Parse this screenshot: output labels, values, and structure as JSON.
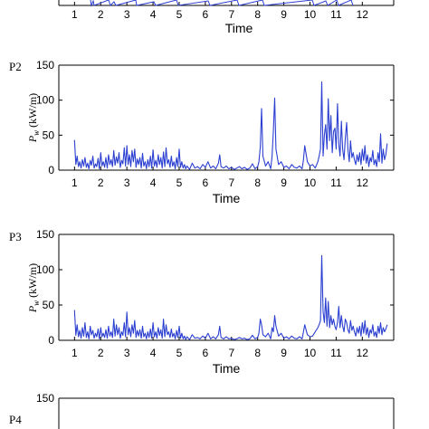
{
  "panel_labels": [
    "P2",
    "P3",
    "P4"
  ],
  "top_strip": {
    "ticks": [
      "1",
      "2",
      "3",
      "4",
      "5",
      "6",
      "7",
      "8",
      "9",
      "10",
      "11",
      "12"
    ],
    "xlabel": "Time"
  },
  "series_color": "#2b3fd1",
  "chart_data": [
    {
      "type": "line",
      "label": "P2",
      "xlabel": "Time",
      "ylabel": "P_w (kW/m)",
      "ylim": [
        0,
        150
      ],
      "yticks": [
        0,
        50,
        100,
        150
      ],
      "xticks": [
        1,
        2,
        3,
        4,
        5,
        6,
        7,
        8,
        9,
        10,
        11,
        12
      ],
      "xlim": [
        0.4,
        13.2
      ],
      "series": [
        {
          "x": [
            1.0,
            1.05,
            1.1,
            1.15,
            1.2,
            1.25,
            1.3,
            1.35,
            1.4,
            1.45,
            1.5,
            1.55,
            1.6,
            1.65,
            1.7,
            1.75,
            1.8,
            1.85,
            1.9,
            1.95,
            2.0,
            2.05,
            2.1,
            2.15,
            2.2,
            2.25,
            2.3,
            2.35,
            2.4,
            2.45,
            2.5,
            2.55,
            2.6,
            2.65,
            2.7,
            2.75,
            2.8,
            2.85,
            2.9,
            2.95,
            3.0,
            3.05,
            3.1,
            3.15,
            3.2,
            3.25,
            3.3,
            3.35,
            3.4,
            3.45,
            3.5,
            3.55,
            3.6,
            3.65,
            3.7,
            3.75,
            3.8,
            3.85,
            3.9,
            3.95,
            4.0,
            4.05,
            4.1,
            4.15,
            4.2,
            4.25,
            4.3,
            4.35,
            4.4,
            4.45,
            4.5,
            4.55,
            4.6,
            4.65,
            4.7,
            4.75,
            4.8,
            4.85,
            4.9,
            4.95,
            5.0,
            5.05,
            5.1,
            5.15,
            5.2,
            5.25,
            5.3,
            5.4,
            5.5,
            5.6,
            5.7,
            5.8,
            5.9,
            6.0,
            6.1,
            6.2,
            6.3,
            6.4,
            6.5,
            6.55,
            6.6,
            6.7,
            6.8,
            6.9,
            7.0,
            7.1,
            7.2,
            7.3,
            7.4,
            7.5,
            7.6,
            7.7,
            7.8,
            7.9,
            8.0,
            8.05,
            8.1,
            8.15,
            8.2,
            8.3,
            8.4,
            8.5,
            8.55,
            8.6,
            8.65,
            8.7,
            8.8,
            8.9,
            9.0,
            9.1,
            9.2,
            9.3,
            9.4,
            9.5,
            9.6,
            9.7,
            9.75,
            9.8,
            9.9,
            10.0,
            10.1,
            10.2,
            10.3,
            10.35,
            10.4,
            10.45,
            10.5,
            10.55,
            10.6,
            10.65,
            10.7,
            10.75,
            10.8,
            10.85,
            10.9,
            10.95,
            11.0,
            11.05,
            11.1,
            11.15,
            11.2,
            11.25,
            11.3,
            11.35,
            11.4,
            11.45,
            11.5,
            11.55,
            11.6,
            11.65,
            11.7,
            11.75,
            11.8,
            11.85,
            11.9,
            11.95,
            12.0,
            12.05,
            12.1,
            12.15,
            12.2,
            12.25,
            12.3,
            12.35,
            12.4,
            12.45,
            12.5,
            12.55,
            12.6,
            12.65,
            12.7,
            12.75,
            12.8,
            12.85,
            12.9,
            12.95
          ],
          "y": [
            43,
            8,
            20,
            5,
            12,
            3,
            15,
            6,
            18,
            4,
            10,
            2,
            14,
            7,
            20,
            3,
            9,
            5,
            17,
            2,
            25,
            6,
            12,
            4,
            18,
            3,
            22,
            8,
            15,
            5,
            28,
            7,
            19,
            10,
            25,
            4,
            14,
            9,
            32,
            6,
            35,
            8,
            22,
            5,
            28,
            12,
            30,
            4,
            16,
            8,
            18,
            3,
            24,
            6,
            12,
            2,
            15,
            5,
            20,
            3,
            29,
            6,
            14,
            4,
            22,
            8,
            18,
            3,
            26,
            5,
            32,
            9,
            15,
            4,
            20,
            6,
            12,
            2,
            18,
            5,
            30,
            4,
            12,
            3,
            8,
            2,
            6,
            1,
            10,
            3,
            5,
            2,
            8,
            4,
            12,
            3,
            6,
            2,
            10,
            22,
            5,
            3,
            6,
            2,
            4,
            1,
            3,
            5,
            2,
            4,
            1,
            3,
            9,
            2,
            5,
            12,
            33,
            88,
            20,
            6,
            12,
            2,
            20,
            55,
            103,
            30,
            8,
            12,
            4,
            6,
            2,
            8,
            4,
            3,
            6,
            2,
            15,
            35,
            12,
            6,
            8,
            3,
            12,
            20,
            30,
            126,
            20,
            50,
            65,
            30,
            102,
            42,
            78,
            25,
            55,
            60,
            30,
            95,
            38,
            20,
            70,
            30,
            15,
            45,
            68,
            30,
            12,
            42,
            18,
            25,
            15,
            8,
            22,
            12,
            25,
            8,
            30,
            14,
            35,
            10,
            22,
            5,
            18,
            12,
            28,
            8,
            15,
            5,
            25,
            12,
            52,
            10,
            30,
            15,
            22,
            38
          ]
        }
      ]
    },
    {
      "type": "line",
      "label": "P3",
      "xlabel": "Time",
      "ylabel": "P_w (kW/m)",
      "ylim": [
        0,
        150
      ],
      "yticks": [
        0,
        50,
        100,
        150
      ],
      "xticks": [
        1,
        2,
        3,
        4,
        5,
        6,
        7,
        8,
        9,
        10,
        11,
        12
      ],
      "xlim": [
        0.4,
        13.2
      ],
      "series": [
        {
          "x": [
            1.0,
            1.05,
            1.1,
            1.15,
            1.2,
            1.25,
            1.3,
            1.35,
            1.4,
            1.45,
            1.5,
            1.55,
            1.6,
            1.65,
            1.7,
            1.75,
            1.8,
            1.85,
            1.9,
            1.95,
            2.0,
            2.05,
            2.1,
            2.15,
            2.2,
            2.25,
            2.3,
            2.35,
            2.4,
            2.45,
            2.5,
            2.55,
            2.6,
            2.65,
            2.7,
            2.75,
            2.8,
            2.85,
            2.9,
            2.95,
            3.0,
            3.05,
            3.1,
            3.15,
            3.2,
            3.25,
            3.3,
            3.35,
            3.4,
            3.45,
            3.5,
            3.55,
            3.6,
            3.65,
            3.7,
            3.75,
            3.8,
            3.85,
            3.9,
            3.95,
            4.0,
            4.05,
            4.1,
            4.15,
            4.2,
            4.25,
            4.3,
            4.35,
            4.4,
            4.45,
            4.5,
            4.55,
            4.6,
            4.65,
            4.7,
            4.75,
            4.8,
            4.85,
            4.9,
            4.95,
            5.0,
            5.05,
            5.1,
            5.15,
            5.2,
            5.25,
            5.3,
            5.4,
            5.5,
            5.6,
            5.7,
            5.8,
            5.9,
            6.0,
            6.1,
            6.2,
            6.3,
            6.4,
            6.5,
            6.55,
            6.6,
            6.7,
            6.8,
            6.9,
            7.0,
            7.1,
            7.2,
            7.3,
            7.4,
            7.5,
            7.6,
            7.7,
            7.8,
            7.9,
            8.0,
            8.05,
            8.1,
            8.15,
            8.2,
            8.3,
            8.4,
            8.5,
            8.55,
            8.6,
            8.65,
            8.7,
            8.8,
            8.9,
            9.0,
            9.1,
            9.2,
            9.3,
            9.4,
            9.5,
            9.6,
            9.7,
            9.75,
            9.8,
            9.9,
            10.0,
            10.1,
            10.2,
            10.3,
            10.35,
            10.4,
            10.45,
            10.5,
            10.55,
            10.6,
            10.65,
            10.7,
            10.75,
            10.8,
            10.85,
            10.9,
            10.95,
            11.0,
            11.05,
            11.1,
            11.15,
            11.2,
            11.25,
            11.3,
            11.35,
            11.4,
            11.45,
            11.5,
            11.55,
            11.6,
            11.65,
            11.7,
            11.75,
            11.8,
            11.85,
            11.9,
            11.95,
            12.0,
            12.05,
            12.1,
            12.15,
            12.2,
            12.25,
            12.3,
            12.35,
            12.4,
            12.45,
            12.5,
            12.55,
            12.6,
            12.65,
            12.7,
            12.75,
            12.8,
            12.85,
            12.9,
            12.95
          ],
          "y": [
            43,
            7,
            22,
            5,
            14,
            3,
            18,
            6,
            25,
            4,
            12,
            2,
            20,
            8,
            14,
            3,
            10,
            5,
            16,
            2,
            18,
            5,
            10,
            4,
            15,
            3,
            20,
            6,
            12,
            4,
            30,
            6,
            22,
            8,
            18,
            3,
            12,
            7,
            25,
            5,
            40,
            8,
            18,
            5,
            22,
            10,
            28,
            4,
            14,
            6,
            15,
            3,
            20,
            5,
            10,
            2,
            12,
            4,
            16,
            3,
            25,
            5,
            12,
            3,
            18,
            7,
            15,
            3,
            30,
            5,
            22,
            8,
            12,
            4,
            16,
            5,
            10,
            2,
            14,
            4,
            20,
            3,
            10,
            2,
            6,
            1,
            5,
            1,
            8,
            3,
            4,
            2,
            6,
            3,
            10,
            2,
            5,
            2,
            8,
            20,
            4,
            2,
            5,
            2,
            3,
            1,
            2,
            4,
            2,
            3,
            1,
            2,
            7,
            2,
            4,
            10,
            30,
            22,
            8,
            5,
            10,
            2,
            18,
            12,
            35,
            20,
            6,
            10,
            3,
            5,
            2,
            6,
            3,
            2,
            5,
            2,
            12,
            22,
            8,
            5,
            6,
            12,
            18,
            22,
            28,
            120,
            40,
            25,
            60,
            20,
            55,
            18,
            35,
            22,
            30,
            20,
            15,
            25,
            48,
            18,
            35,
            20,
            12,
            30,
            25,
            15,
            10,
            28,
            14,
            20,
            12,
            6,
            18,
            10,
            20,
            6,
            25,
            10,
            28,
            8,
            18,
            4,
            15,
            10,
            22,
            6,
            12,
            4,
            20,
            10,
            25,
            8,
            18,
            12,
            16,
            22
          ]
        }
      ]
    },
    {
      "type": "line",
      "label": "P4",
      "ylim": [
        0,
        150
      ],
      "yticks": [
        150
      ],
      "series": []
    }
  ]
}
